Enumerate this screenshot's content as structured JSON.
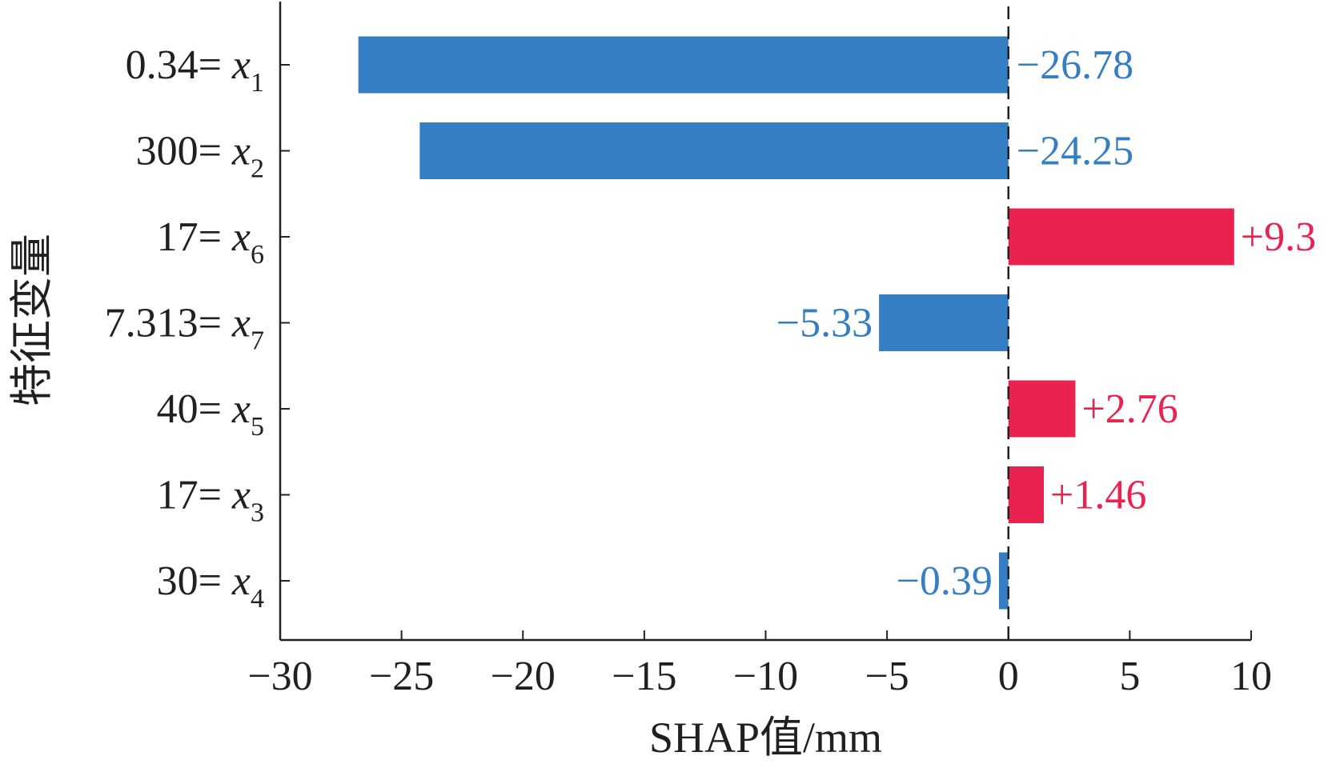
{
  "chart_data": {
    "type": "bar",
    "orientation": "horizontal",
    "xlabel": "SHAP值/mm",
    "ylabel": "特征变量",
    "xlim": [
      -30,
      10
    ],
    "xticks": [
      -30,
      -25,
      -20,
      -15,
      -10,
      -5,
      0,
      5,
      10
    ],
    "xtick_labels": [
      "−30",
      "−25",
      "−20",
      "−15",
      "−10",
      "−5",
      "0",
      "5",
      "10"
    ],
    "grid": false,
    "zero_line": "dashed",
    "colors": {
      "positive": "#E8234F",
      "negative": "#357EC3"
    },
    "bars": [
      {
        "feature_value": "0.34",
        "var": "x",
        "sub": "1",
        "value": -26.78,
        "label": "−26.78"
      },
      {
        "feature_value": "300",
        "var": "x",
        "sub": "2",
        "value": -24.25,
        "label": "−24.25"
      },
      {
        "feature_value": "17",
        "var": "x",
        "sub": "6",
        "value": 9.3,
        "label": "+9.3"
      },
      {
        "feature_value": "7.313",
        "var": "x",
        "sub": "7",
        "value": -5.33,
        "label": "−5.33"
      },
      {
        "feature_value": "40",
        "var": "x",
        "sub": "5",
        "value": 2.76,
        "label": "+2.76"
      },
      {
        "feature_value": "17",
        "var": "x",
        "sub": "3",
        "value": 1.46,
        "label": "+1.46"
      },
      {
        "feature_value": "30",
        "var": "x",
        "sub": "4",
        "value": -0.39,
        "label": "−0.39"
      }
    ]
  }
}
